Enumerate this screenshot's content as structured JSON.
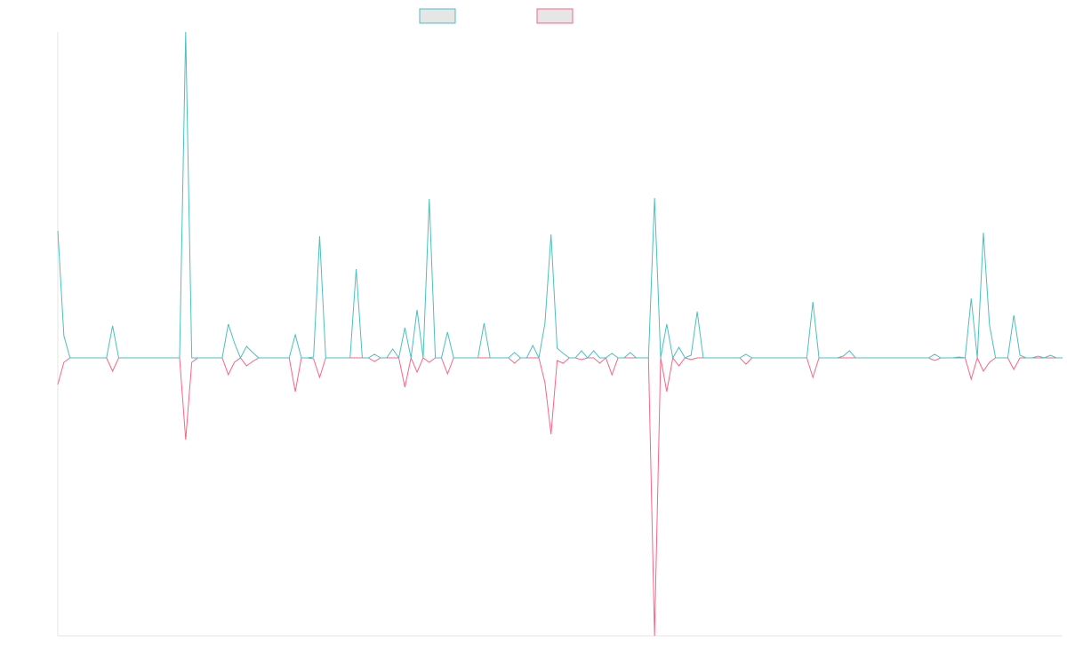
{
  "chart_data": {
    "type": "line",
    "ylim": [
      -313,
      367
    ],
    "grid": false,
    "legend": "top",
    "series": [
      {
        "color": "#4bc0c0",
        "fill": "#e6e6e6",
        "values": [
          143,
          25,
          0,
          0,
          0,
          0,
          0,
          0,
          0,
          36,
          0,
          0,
          0,
          0,
          0,
          0,
          0,
          0,
          0,
          0,
          0,
          367,
          0,
          0,
          0,
          0,
          0,
          0,
          38,
          17,
          0,
          13,
          6,
          0,
          0,
          0,
          0,
          0,
          0,
          26,
          0,
          0,
          1,
          137,
          0,
          0,
          0,
          0,
          0,
          100,
          0,
          0,
          4,
          0,
          0,
          10,
          0,
          34,
          0,
          54,
          0,
          179,
          0,
          0,
          29,
          0,
          0,
          0,
          0,
          0,
          39,
          0,
          0,
          0,
          0,
          6,
          0,
          0,
          14,
          0,
          39,
          139,
          11,
          5,
          0,
          0,
          8,
          0,
          8,
          0,
          0,
          5,
          0,
          0,
          6,
          0,
          0,
          0,
          180,
          0,
          38,
          0,
          12,
          0,
          3,
          52,
          0,
          0,
          0,
          0,
          0,
          0,
          0,
          4,
          0,
          0,
          0,
          0,
          0,
          0,
          0,
          0,
          0,
          0,
          63,
          0,
          0,
          0,
          0,
          2,
          8,
          0,
          0,
          0,
          0,
          0,
          0,
          0,
          0,
          0,
          0,
          0,
          0,
          0,
          4,
          0,
          0,
          0,
          1,
          0,
          67,
          0,
          141,
          37,
          0,
          0,
          0,
          48,
          3,
          0,
          0,
          2,
          0,
          3,
          0,
          0
        ]
      },
      {
        "color": "#ff6384",
        "fill": "#e6e6e6",
        "values": [
          -30,
          -5,
          0,
          0,
          0,
          0,
          0,
          0,
          0,
          -15,
          0,
          0,
          0,
          0,
          0,
          0,
          0,
          0,
          0,
          0,
          0,
          -92,
          -5,
          0,
          0,
          0,
          0,
          0,
          -19,
          -5,
          0,
          -9,
          -4,
          0,
          0,
          0,
          0,
          0,
          0,
          -38,
          0,
          0,
          -1,
          -22,
          0,
          0,
          0,
          0,
          0,
          0,
          0,
          0,
          -4,
          0,
          0,
          0,
          0,
          -33,
          0,
          -16,
          0,
          -5,
          0,
          0,
          -18,
          0,
          0,
          0,
          0,
          0,
          0,
          0,
          0,
          0,
          0,
          -6,
          0,
          0,
          0,
          0,
          -28,
          -86,
          -3,
          -6,
          0,
          0,
          -2,
          0,
          0,
          -6,
          0,
          -19,
          0,
          0,
          0,
          0,
          0,
          0,
          -313,
          0,
          -38,
          0,
          -9,
          0,
          -2,
          0,
          0,
          0,
          0,
          0,
          0,
          0,
          0,
          -7,
          0,
          0,
          0,
          0,
          0,
          0,
          0,
          0,
          0,
          0,
          -22,
          0,
          0,
          0,
          0,
          0,
          0,
          0,
          0,
          0,
          0,
          0,
          0,
          0,
          0,
          0,
          0,
          0,
          0,
          0,
          -3,
          0,
          0,
          0,
          0,
          0,
          -24,
          0,
          -15,
          -5,
          0,
          0,
          0,
          -13,
          0,
          0,
          0,
          0,
          0,
          0,
          0,
          0
        ]
      }
    ]
  }
}
